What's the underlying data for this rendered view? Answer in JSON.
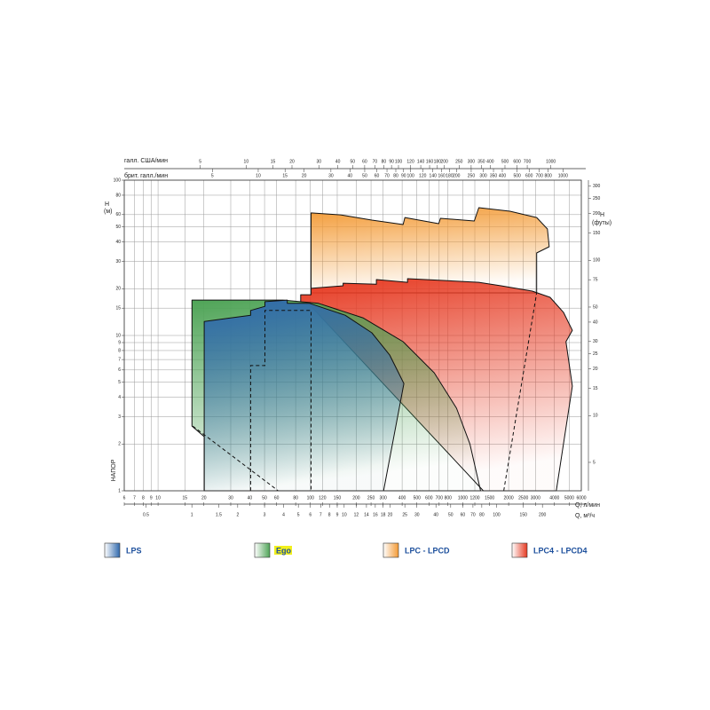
{
  "chart_data": {
    "type": "region",
    "x_label": "Q, л/мин",
    "xlim": [
      6,
      6000
    ],
    "xticks": [
      6,
      7,
      8,
      9,
      10,
      15,
      20,
      30,
      40,
      50,
      60,
      80,
      100,
      120,
      150,
      200,
      250,
      300,
      400,
      500,
      600,
      700,
      800,
      1000,
      1200,
      1500,
      2000,
      2500,
      3000,
      4000,
      5000,
      6000
    ],
    "x_log": true,
    "x2_label": "Q, м³/ч",
    "x2lim": [
      0.36,
      360
    ],
    "x2ticks": [
      0.5,
      1,
      1.5,
      2,
      3,
      4,
      5,
      6,
      7,
      8,
      9,
      10,
      12,
      14,
      16,
      18,
      20,
      25,
      30,
      40,
      50,
      60,
      70,
      80,
      100,
      150,
      200
    ],
    "x3_label": "галл. США/мин",
    "x3lim": [
      1.585,
      1585
    ],
    "x3ticks": [
      5,
      10,
      15,
      20,
      30,
      40,
      50,
      60,
      70,
      80,
      90,
      100,
      120,
      140,
      160,
      180,
      200,
      250,
      300,
      350,
      400,
      500,
      600,
      700,
      1000
    ],
    "x4_label": "брит. галл./мин",
    "x4lim": [
      1.32,
      1320
    ],
    "x4ticks": [
      5,
      10,
      15,
      20,
      30,
      40,
      50,
      60,
      70,
      80,
      90,
      100,
      120,
      140,
      160,
      180,
      200,
      250,
      300,
      350,
      400,
      500,
      600,
      700,
      800,
      1000
    ],
    "y_label": [
      "H",
      "(м)"
    ],
    "y_label2": "НАПОР",
    "ylim": [
      1,
      100
    ],
    "yticks": [
      1,
      2,
      3,
      4,
      5,
      6,
      7,
      8,
      9,
      10,
      15,
      20,
      30,
      40,
      50,
      60,
      80,
      100
    ],
    "y_log": true,
    "y2_label": [
      "H",
      "(футы)"
    ],
    "y2lim": [
      3.281,
      328.1
    ],
    "y2ticks": [
      5,
      10,
      15,
      20,
      25,
      30,
      40,
      50,
      75,
      100,
      150,
      200,
      250,
      300
    ],
    "grid": true,
    "series": [
      {
        "name": "LPC - LPCD",
        "color": "#f39a35",
        "x": [
          101,
          158,
          253,
          406,
          417,
          695,
          714,
          1191,
          1274,
          2040,
          3055,
          3595,
          3690,
          3055,
          3055,
          101
        ],
        "values": [
          61.5,
          59.8,
          55.3,
          51.8,
          57.5,
          52.5,
          56.8,
          54.6,
          66.5,
          63.1,
          57.5,
          48.5,
          37.3,
          34.0,
          18.8,
          18.8
        ]
      },
      {
        "name": "LPC4 - LPCD4",
        "color": "#e63a22",
        "x": [
          86.3,
          86.3,
          101,
          101,
          164,
          164,
          271,
          271,
          434,
          434,
          743,
          1274,
          1782,
          2858,
          3741,
          4580,
          5240,
          4760,
          5240,
          4110,
          1364,
          101
        ],
        "values": [
          16.5,
          18.3,
          18.3,
          20.1,
          20.9,
          21.7,
          21.4,
          22.9,
          22.0,
          23.2,
          22.6,
          22.0,
          20.9,
          19.3,
          17.6,
          14.1,
          10.8,
          9.12,
          4.72,
          1,
          1,
          15.4
        ]
      },
      {
        "name": "Ego",
        "color": "#4fa457",
        "x": [
          16.7,
          16.7,
          65.9,
          113,
          221,
          406,
          650,
          910,
          1115,
          1310,
          20.1,
          20.1
        ],
        "values": [
          2.61,
          16.9,
          16.9,
          16.1,
          13.0,
          9.12,
          5.75,
          3.4,
          2.0,
          1,
          1,
          2.23
        ]
      },
      {
        "name": "LPS",
        "color": "#3069ad",
        "x": [
          20.1,
          20.1,
          40.5,
          40.5,
          50.3,
          50.3,
          70.5,
          70.5,
          98.8,
          169,
          253,
          331,
          379,
          411,
          302
        ],
        "values": [
          1,
          12.3,
          13.5,
          14.5,
          15.4,
          16.5,
          16.9,
          16.1,
          16.1,
          13.5,
          10.4,
          7.5,
          5.75,
          4.9,
          1
        ]
      }
    ],
    "dashed": [
      {
        "x": [
          16.9,
          61.5
        ],
        "values": [
          2.61,
          1
        ]
      },
      {
        "x": [
          40.5,
          40.5,
          50.3,
          50.3,
          101,
          101
        ],
        "values": [
          1,
          6.4,
          6.4,
          14.5,
          14.5,
          1
        ]
      },
      {
        "x": [
          1858,
          3055
        ],
        "values": [
          1,
          18.8
        ]
      }
    ]
  }
}
